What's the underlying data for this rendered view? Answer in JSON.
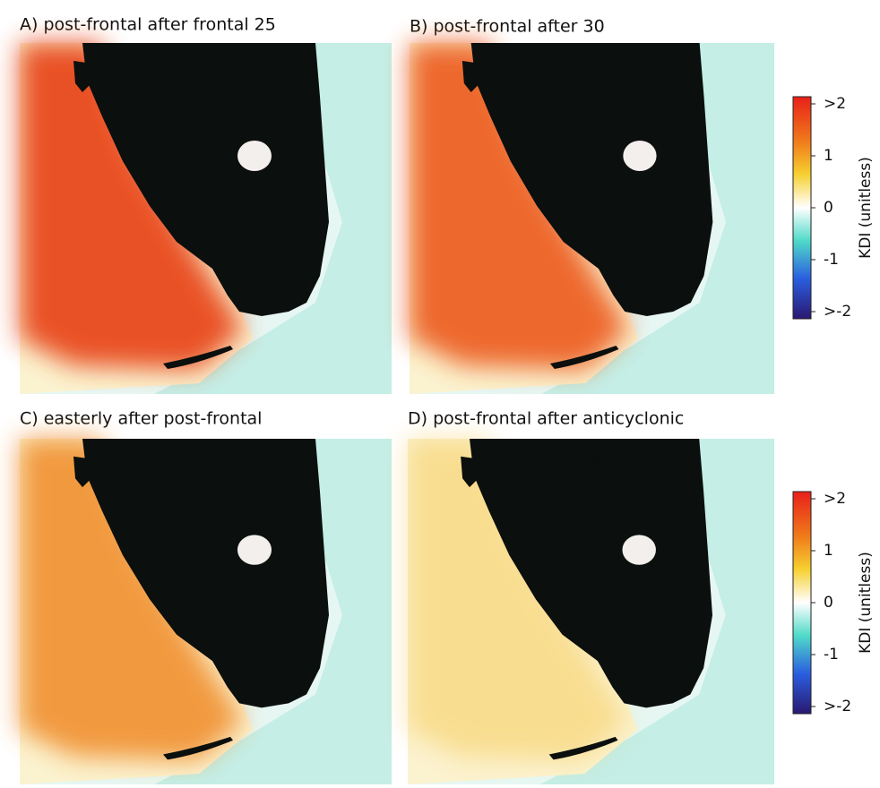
{
  "panels": [
    {
      "title": "A) post-frontal after frontal 25"
    },
    {
      "title": "B) post-frontal after 30"
    },
    {
      "title": "C) easterly after post-frontal"
    },
    {
      "title": "D) post-frontal after anticyclonic"
    }
  ],
  "colorbars": [
    {
      "label": "KDI (unitless)",
      "ticks": [
        ">2",
        "1",
        "0",
        "-1",
        ">-2"
      ]
    },
    {
      "label": "KDI (unitless)",
      "ticks": [
        ">2",
        "1",
        "0",
        "-1",
        ">-2"
      ]
    }
  ]
}
